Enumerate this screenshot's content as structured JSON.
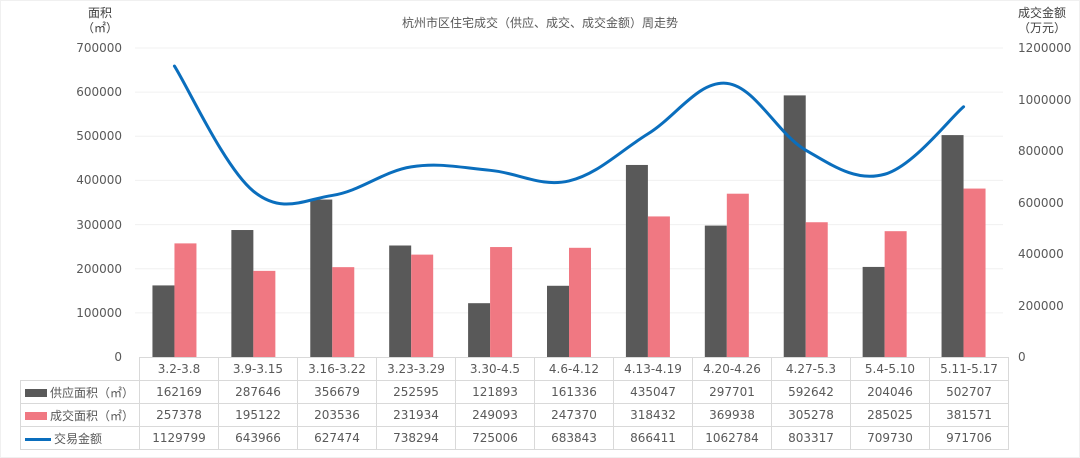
{
  "chart_data": {
    "type": "bar",
    "title": "杭州市区住宅成交（供应、成交、成交金额）周走势",
    "left_axis": {
      "label_line1": "面积",
      "label_line2": "（㎡）",
      "range": [
        0,
        700000
      ],
      "ticks": [
        "700000",
        "600000",
        "500000",
        "400000",
        "300000",
        "200000",
        "100000",
        "0"
      ]
    },
    "right_axis": {
      "label_line1": "成交金额",
      "label_line2": "（万元）",
      "range": [
        0,
        1200000
      ],
      "ticks": [
        "1200000",
        "1000000",
        "800000",
        "600000",
        "400000",
        "200000",
        "0"
      ]
    },
    "categories": [
      "3.2-3.8",
      "3.9-3.15",
      "3.16-3.22",
      "3.23-3.29",
      "3.30-4.5",
      "4.6-4.12",
      "4.13-4.19",
      "4.20-4.26",
      "4.27-5.3",
      "5.4-5.10",
      "5.11-5.17"
    ],
    "series": [
      {
        "name": "供应面积（㎡）",
        "type": "bar",
        "axis": "left",
        "color": "#595959",
        "values": [
          162169,
          287646,
          356679,
          252595,
          121893,
          161336,
          435047,
          297701,
          592642,
          204046,
          502707
        ]
      },
      {
        "name": "成交面积（㎡）",
        "type": "bar",
        "axis": "left",
        "color": "#f07882",
        "values": [
          257378,
          195122,
          203536,
          231934,
          249093,
          247370,
          318432,
          369938,
          305278,
          285025,
          381571
        ]
      },
      {
        "name": "交易金额",
        "type": "line",
        "axis": "right",
        "color": "#0a6ebd",
        "values": [
          1129799,
          643966,
          627474,
          738294,
          725006,
          683843,
          866411,
          1062784,
          803317,
          709730,
          971706
        ]
      }
    ],
    "grid": true,
    "legend_position": "data-table"
  }
}
